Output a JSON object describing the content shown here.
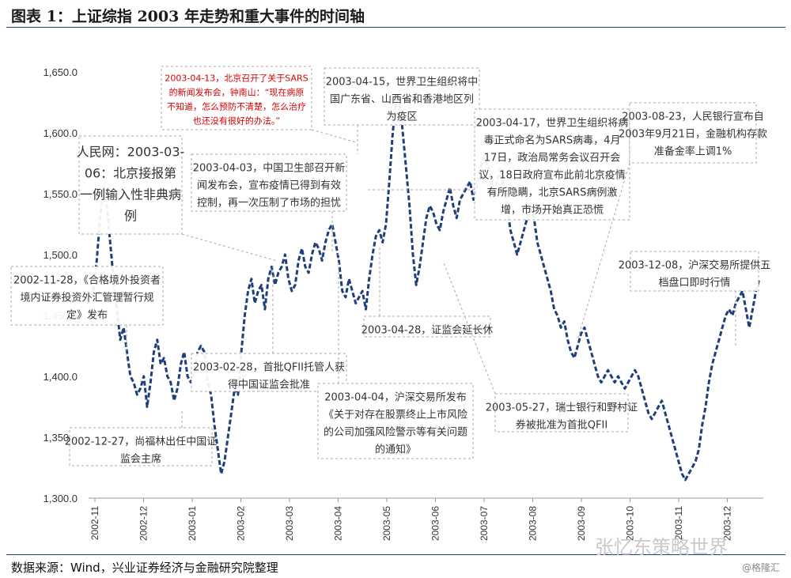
{
  "title": "图表 1：上证综指 2003 年走势和重大事件的时间轴",
  "source": "数据来源：Wind，兴业证券经济与金融研究院整理",
  "watermark": "张忆东策略世界",
  "watermark_corner": "@格隆汇",
  "chart_data": {
    "type": "line",
    "ylim": [
      1300,
      1670
    ],
    "yticks": [
      "1,300.0",
      "1,350.0",
      "1,400.0",
      "1,450.0",
      "1,500.0",
      "1,550.0",
      "1,600.0",
      "1,650.0"
    ],
    "ytick_values": [
      1300,
      1350,
      1400,
      1450,
      1500,
      1550,
      1600,
      1650
    ],
    "xticks": [
      "2002-11",
      "2002-12",
      "2003-01",
      "2003-02",
      "2003-03",
      "2003-04",
      "2003-05",
      "2003-06",
      "2003-07",
      "2003-08",
      "2003-09",
      "2003-10",
      "2003-11",
      "2003-12"
    ],
    "line_color": "#1f3f7a",
    "series": [
      {
        "values": [
          1470,
          1495,
          1530,
          1555,
          1540,
          1510,
          1480,
          1455,
          1430,
          1440,
          1420,
          1400,
          1395,
          1385,
          1390,
          1400,
          1375,
          1395,
          1420,
          1430,
          1410,
          1415,
          1400,
          1395,
          1380,
          1390,
          1410,
          1420,
          1400,
          1395,
          1405,
          1420,
          1425,
          1420,
          1395,
          1385,
          1360,
          1340,
          1320,
          1330,
          1350,
          1370,
          1390,
          1385,
          1420,
          1450,
          1470,
          1480,
          1460,
          1470,
          1475,
          1455,
          1480,
          1490,
          1475,
          1485,
          1490,
          1500,
          1480,
          1470,
          1475,
          1495,
          1505,
          1490,
          1485,
          1500,
          1510,
          1505,
          1495,
          1510,
          1520,
          1525,
          1510,
          1495,
          1470,
          1465,
          1480,
          1470,
          1460,
          1465,
          1470,
          1455,
          1480,
          1500,
          1515,
          1520,
          1510,
          1525,
          1560,
          1600,
          1625,
          1630,
          1600,
          1570,
          1540,
          1500,
          1475,
          1490,
          1510,
          1530,
          1540,
          1535,
          1525,
          1520,
          1535,
          1545,
          1555,
          1540,
          1530,
          1545,
          1550,
          1555,
          1560,
          1545,
          1555,
          1570,
          1580,
          1575,
          1565,
          1550,
          1560,
          1570,
          1555,
          1540,
          1520,
          1510,
          1500,
          1510,
          1520,
          1530,
          1540,
          1530,
          1510,
          1500,
          1490,
          1480,
          1470,
          1455,
          1450,
          1440,
          1445,
          1430,
          1420,
          1415,
          1425,
          1435,
          1440,
          1430,
          1420,
          1410,
          1400,
          1395,
          1400,
          1405,
          1400,
          1395,
          1400,
          1395,
          1390,
          1395,
          1400,
          1405,
          1400,
          1390,
          1380,
          1370,
          1365,
          1370,
          1375,
          1380,
          1370,
          1360,
          1350,
          1340,
          1330,
          1320,
          1315,
          1320,
          1325,
          1330,
          1340,
          1360,
          1375,
          1395,
          1410,
          1420,
          1430,
          1440,
          1450,
          1455,
          1450,
          1460,
          1465,
          1470,
          1455,
          1440,
          1455,
          1470,
          1480
        ]
      }
    ]
  },
  "annotations": [
    {
      "id": "a1",
      "lines": [
        "人民网：2003-03-",
        "06：北京接报第",
        "一例输入性非典病",
        "例"
      ],
      "color": "#333333"
    },
    {
      "id": "a2",
      "lines": [
        "2003-04-13，北京召开了关于SARS",
        "的新闻发布会，钟南山：“现在病原",
        "不知道，怎么预防不清楚，怎么治疗",
        "也还没有很好的办法。”"
      ],
      "color": "#d40000"
    },
    {
      "id": "a3",
      "lines": [
        "2003-04-15，世界卫生组织将中",
        "国广东省、山西省和香港地区列",
        "为疫区"
      ],
      "color": "#333333"
    },
    {
      "id": "a4",
      "lines": [
        "2003-04-17，世界卫生组织将病",
        "毒正式命名为SARS病毒，4月",
        "17日，政治局常务会议召开会",
        "议，18日政府宣布此前北京疫情",
        "有所隐瞒，北京SARS病例激",
        "增，市场开始真正恐慌"
      ],
      "color": "#333333"
    },
    {
      "id": "a5",
      "lines": [
        "2003-08-23，人民银行宣布自",
        "2003年9月21日，金融机构存款",
        "准备金率上调1%"
      ],
      "color": "#333333"
    },
    {
      "id": "a6",
      "lines": [
        "2003-04-03，中国卫生部召开新",
        "闻发布会，宣布疫情已得到有效",
        "控制，再一次压制了市场的担忧"
      ],
      "color": "#333333"
    },
    {
      "id": "a7",
      "lines": [
        "2002-11-28，《合格境外投资者",
        "境内证券投资外汇管理暂行规",
        "定》发布"
      ],
      "color": "#333333"
    },
    {
      "id": "a8",
      "lines": [
        "2003-04-28，证监会延长休"
      ],
      "color": "#333333"
    },
    {
      "id": "a9",
      "lines": [
        "2003-12-08，沪深交易所提供五",
        "档盘口即时行情"
      ],
      "color": "#333333"
    },
    {
      "id": "a10",
      "lines": [
        "2003-02-28，首批QFII托管人获",
        "得中国证监会批准"
      ],
      "color": "#333333"
    },
    {
      "id": "a11",
      "lines": [
        "2003-04-04，沪深交易所发布",
        "《关于对存在股票终止上市风险",
        "的公司加强风险警示等有关问题",
        "的通知》"
      ],
      "color": "#333333"
    },
    {
      "id": "a12",
      "lines": [
        "2003-05-27，瑞士银行和野村证",
        "券被批准为首批QFII"
      ],
      "color": "#333333"
    },
    {
      "id": "a13",
      "lines": [
        "2002-12-27，尚福林出任中国证",
        "监会主席"
      ],
      "color": "#333333"
    }
  ]
}
